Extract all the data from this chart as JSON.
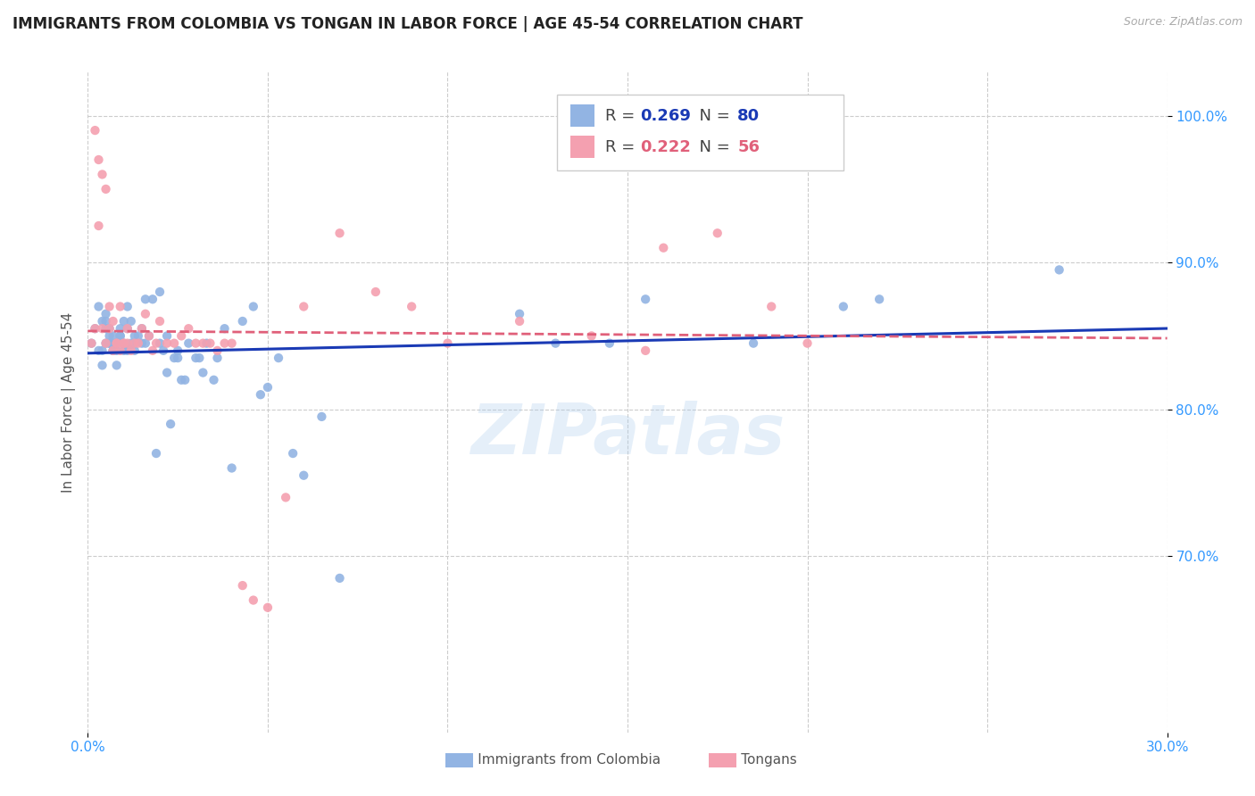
{
  "title": "IMMIGRANTS FROM COLOMBIA VS TONGAN IN LABOR FORCE | AGE 45-54 CORRELATION CHART",
  "source": "Source: ZipAtlas.com",
  "ylabel": "In Labor Force | Age 45-54",
  "xlim": [
    0.0,
    0.3
  ],
  "ylim": [
    0.58,
    1.03
  ],
  "colombia_R": 0.269,
  "colombia_N": 80,
  "tongan_R": 0.222,
  "tongan_N": 56,
  "colombia_color": "#92b4e3",
  "tongan_color": "#f4a0b0",
  "colombia_line_color": "#1a3ab5",
  "tongan_line_color": "#e0607a",
  "watermark": "ZIPatlas",
  "colombia_scatter_x": [
    0.001,
    0.002,
    0.003,
    0.003,
    0.004,
    0.004,
    0.004,
    0.005,
    0.005,
    0.005,
    0.005,
    0.006,
    0.006,
    0.006,
    0.006,
    0.007,
    0.007,
    0.007,
    0.007,
    0.008,
    0.008,
    0.008,
    0.009,
    0.009,
    0.009,
    0.01,
    0.01,
    0.01,
    0.011,
    0.011,
    0.011,
    0.012,
    0.012,
    0.013,
    0.013,
    0.014,
    0.015,
    0.015,
    0.016,
    0.016,
    0.017,
    0.018,
    0.019,
    0.02,
    0.02,
    0.021,
    0.022,
    0.022,
    0.023,
    0.024,
    0.025,
    0.025,
    0.026,
    0.027,
    0.028,
    0.03,
    0.031,
    0.032,
    0.033,
    0.035,
    0.036,
    0.038,
    0.04,
    0.043,
    0.046,
    0.048,
    0.05,
    0.053,
    0.057,
    0.06,
    0.065,
    0.07,
    0.12,
    0.13,
    0.145,
    0.155,
    0.185,
    0.21,
    0.22,
    0.27
  ],
  "colombia_scatter_y": [
    0.845,
    0.855,
    0.84,
    0.87,
    0.83,
    0.84,
    0.86,
    0.845,
    0.855,
    0.86,
    0.865,
    0.845,
    0.85,
    0.845,
    0.855,
    0.84,
    0.845,
    0.84,
    0.85,
    0.83,
    0.845,
    0.84,
    0.85,
    0.85,
    0.855,
    0.84,
    0.845,
    0.86,
    0.84,
    0.855,
    0.87,
    0.86,
    0.845,
    0.85,
    0.84,
    0.85,
    0.855,
    0.845,
    0.845,
    0.875,
    0.85,
    0.875,
    0.77,
    0.845,
    0.88,
    0.84,
    0.85,
    0.825,
    0.79,
    0.835,
    0.84,
    0.835,
    0.82,
    0.82,
    0.845,
    0.835,
    0.835,
    0.825,
    0.845,
    0.82,
    0.835,
    0.855,
    0.76,
    0.86,
    0.87,
    0.81,
    0.815,
    0.835,
    0.77,
    0.755,
    0.795,
    0.685,
    0.865,
    0.845,
    0.845,
    0.875,
    0.845,
    0.87,
    0.875,
    0.895
  ],
  "tongan_scatter_x": [
    0.001,
    0.002,
    0.002,
    0.003,
    0.003,
    0.004,
    0.004,
    0.005,
    0.005,
    0.006,
    0.006,
    0.007,
    0.007,
    0.008,
    0.008,
    0.009,
    0.009,
    0.01,
    0.01,
    0.011,
    0.011,
    0.012,
    0.013,
    0.014,
    0.015,
    0.016,
    0.017,
    0.018,
    0.019,
    0.02,
    0.022,
    0.024,
    0.026,
    0.028,
    0.03,
    0.032,
    0.034,
    0.036,
    0.038,
    0.04,
    0.043,
    0.046,
    0.05,
    0.055,
    0.06,
    0.07,
    0.08,
    0.09,
    0.1,
    0.12,
    0.14,
    0.155,
    0.16,
    0.175,
    0.19,
    0.2
  ],
  "tongan_scatter_y": [
    0.845,
    0.99,
    0.855,
    0.97,
    0.925,
    0.96,
    0.855,
    0.95,
    0.845,
    0.87,
    0.855,
    0.84,
    0.86,
    0.845,
    0.845,
    0.84,
    0.87,
    0.845,
    0.845,
    0.845,
    0.855,
    0.84,
    0.845,
    0.845,
    0.855,
    0.865,
    0.85,
    0.84,
    0.845,
    0.86,
    0.845,
    0.845,
    0.85,
    0.855,
    0.845,
    0.845,
    0.845,
    0.84,
    0.845,
    0.845,
    0.68,
    0.67,
    0.665,
    0.74,
    0.87,
    0.92,
    0.88,
    0.87,
    0.845,
    0.86,
    0.85,
    0.84,
    0.91,
    0.92,
    0.87,
    0.845
  ]
}
